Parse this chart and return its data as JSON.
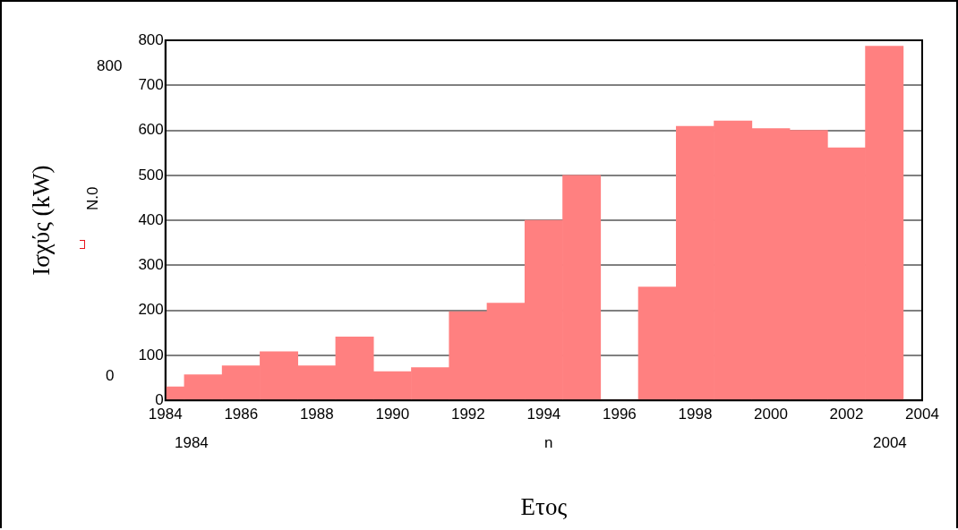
{
  "chart_data": {
    "type": "bar",
    "xlabel": "Ετος",
    "ylabel": "Ισχύς (kW)",
    "x": [
      1984,
      1985,
      1986,
      1987,
      1988,
      1989,
      1990,
      1991,
      1992,
      1993,
      1994,
      1995,
      1996,
      1997,
      1998,
      1999,
      2000,
      2001,
      2002,
      2003
    ],
    "series": [
      {
        "color": "#ff8080",
        "values": [
          30,
          57,
          77,
          108,
          77,
          141,
          64,
          73,
          197,
          216,
          400,
          500,
          0,
          252,
          609,
          621,
          604,
          600,
          561,
          787
        ]
      }
    ],
    "xlim": [
      1984,
      2004
    ],
    "xticks": [
      1984,
      1986,
      1988,
      1990,
      1992,
      1994,
      1996,
      1998,
      2000,
      2002,
      2004
    ],
    "ylim": [
      0,
      800
    ],
    "yticks": [
      0,
      100,
      200,
      300,
      400,
      500,
      600,
      700,
      800
    ],
    "grid": "y",
    "legend": false,
    "annotations": [
      "800",
      "0",
      "N.0",
      "1984",
      "n",
      "2004"
    ]
  }
}
